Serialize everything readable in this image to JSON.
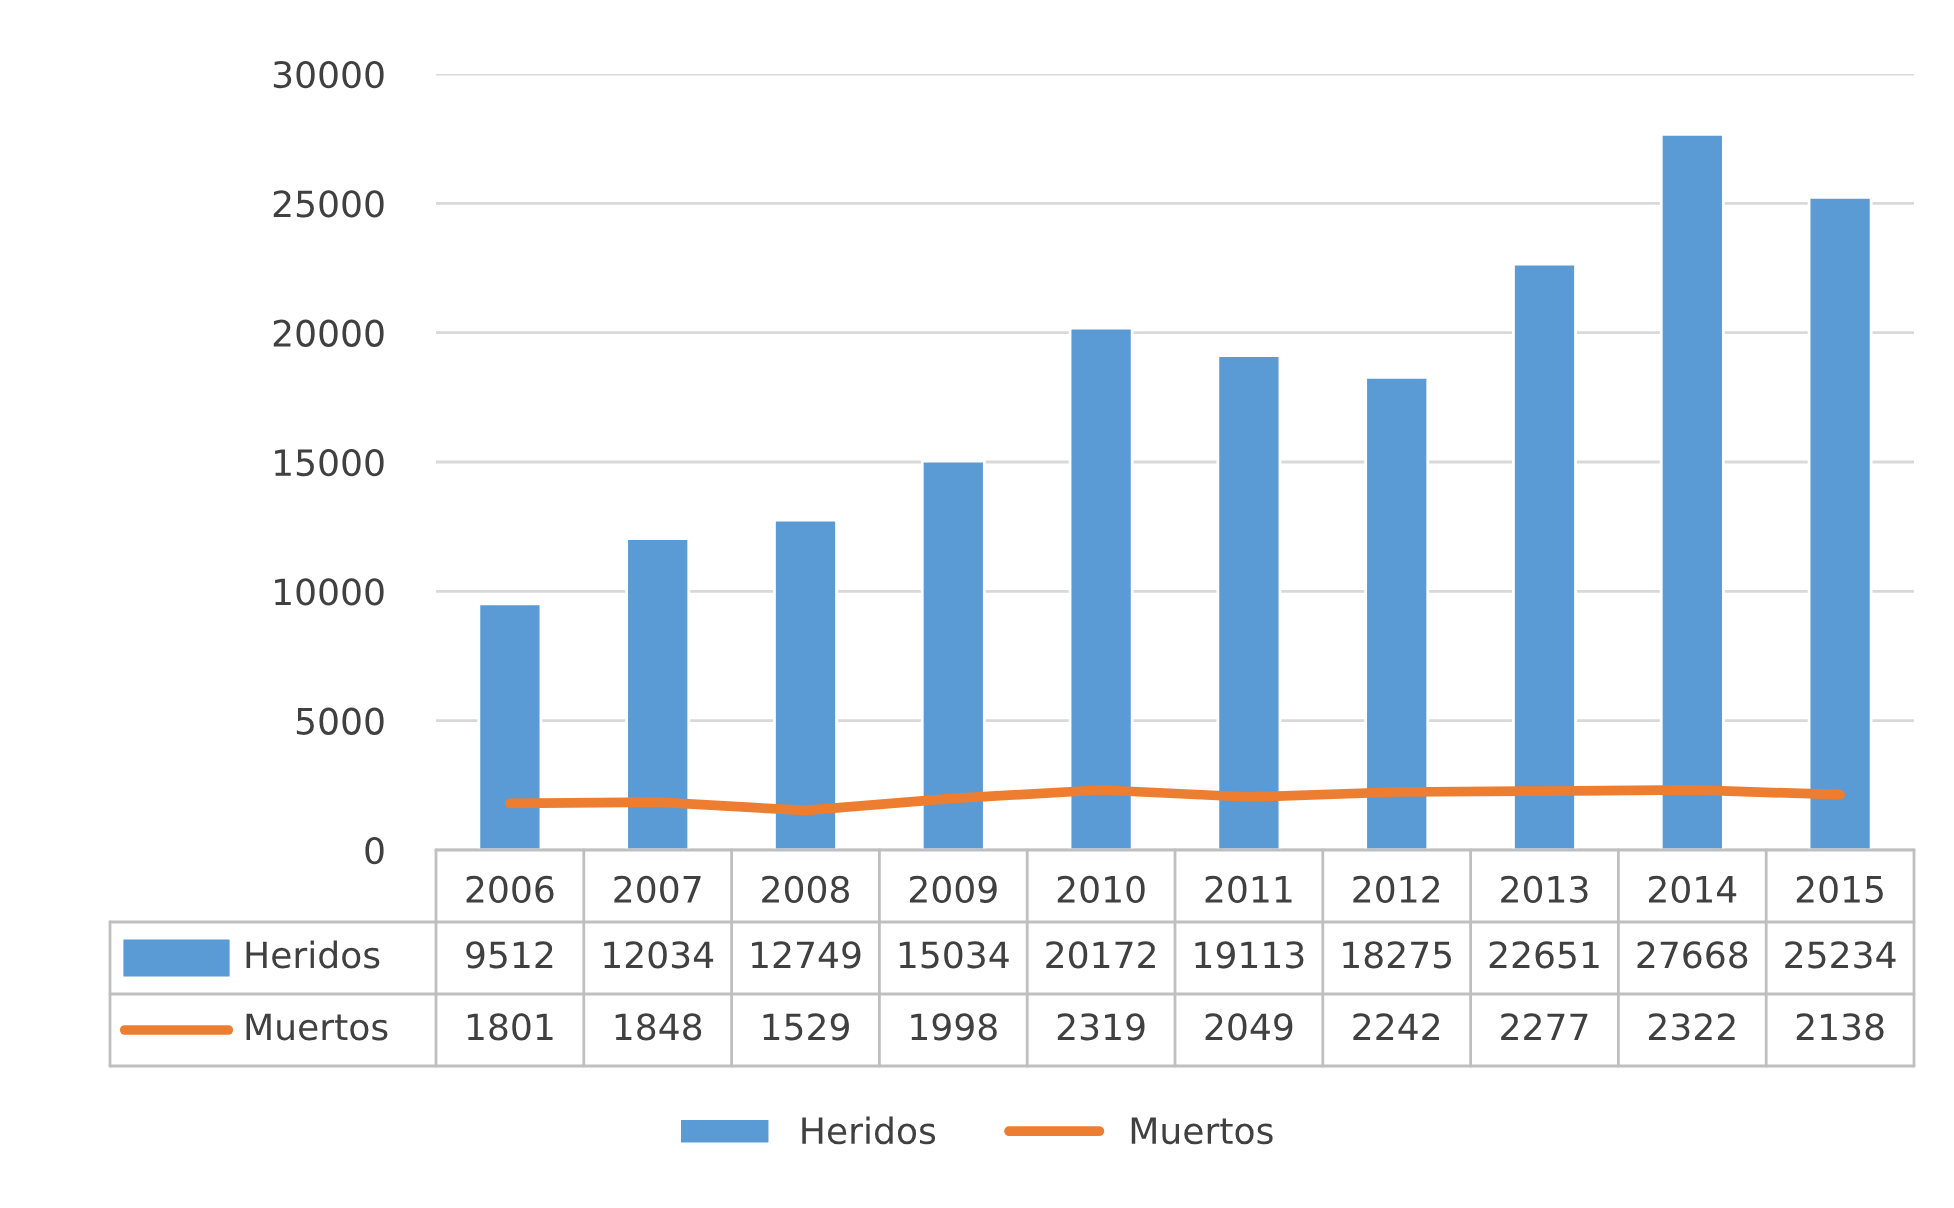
{
  "chart_data": {
    "type": "bar",
    "categories": [
      "2006",
      "2007",
      "2008",
      "2009",
      "2010",
      "2011",
      "2012",
      "2013",
      "2014",
      "2015"
    ],
    "series": [
      {
        "name": "Heridos",
        "color": "#5b9bd5",
        "values": [
          9512,
          12034,
          12749,
          15034,
          20172,
          19113,
          18275,
          22651,
          27668,
          25234
        ]
      },
      {
        "name": "Muertos",
        "type": "line",
        "color": "#ed7d31",
        "values": [
          1801,
          1848,
          1529,
          1998,
          2319,
          2049,
          2242,
          2277,
          2322,
          2138
        ]
      }
    ],
    "ylim": [
      0,
      30000
    ],
    "yticks": [
      0,
      5000,
      10000,
      15000,
      20000,
      25000,
      30000
    ],
    "grid": "y",
    "data_labels": true,
    "legend": "bottom"
  }
}
